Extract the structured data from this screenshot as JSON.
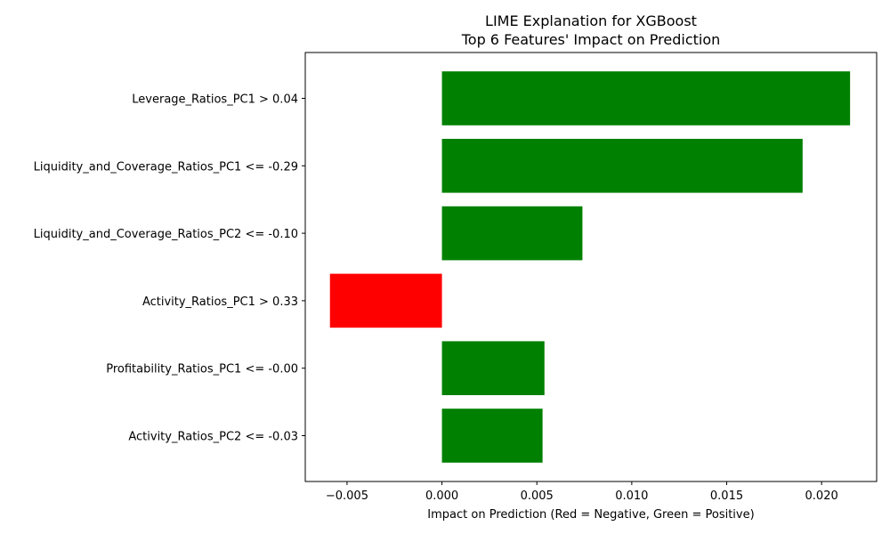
{
  "chart_data": {
    "type": "bar",
    "orientation": "horizontal",
    "title": "LIME Explanation for XGBoost",
    "subtitle": "Top 6 Features' Impact on Prediction",
    "xlabel": "Impact on Prediction (Red = Negative, Green = Positive)",
    "ylabel": "",
    "xlim": [
      -0.0072,
      0.0229
    ],
    "xticks": [
      -0.005,
      0.0,
      0.005,
      0.01,
      0.015,
      0.02
    ],
    "xtick_labels": [
      "−0.005",
      "0.000",
      "0.005",
      "0.010",
      "0.015",
      "0.020"
    ],
    "grid": false,
    "colors": {
      "positive": "#008000",
      "negative": "#ff0000"
    },
    "categories": [
      "Leverage_Ratios_PC1 > 0.04",
      "Liquidity_and_Coverage_Ratios_PC1 <= -0.29",
      "Liquidity_and_Coverage_Ratios_PC2 <= -0.10",
      "Activity_Ratios_PC1 > 0.33",
      "Profitability_Ratios_PC1 <= -0.00",
      "Activity_Ratios_PC2 <= -0.03"
    ],
    "values": [
      0.0215,
      0.019,
      0.0074,
      -0.0059,
      0.0054,
      0.0053
    ]
  }
}
